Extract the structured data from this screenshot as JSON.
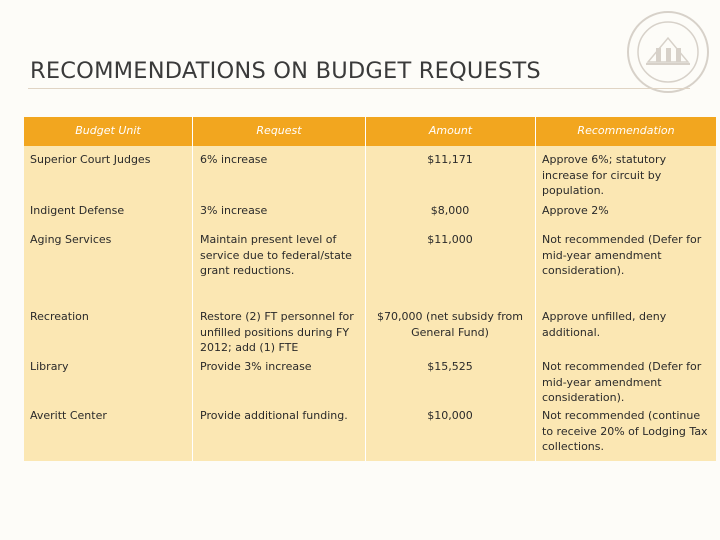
{
  "slide": {
    "title": "RECOMMENDATIONS ON BUDGET REQUESTS"
  },
  "table": {
    "headers": [
      "Budget Unit",
      "Request",
      "Amount",
      "Recommendation"
    ],
    "rows": [
      {
        "unit": "Superior Court Judges",
        "request": "6% increase",
        "amount": "$11,171",
        "recommendation": "Approve 6%; statutory increase for circuit by population."
      },
      {
        "unit": "Indigent Defense",
        "request": "3% increase",
        "amount": "$8,000",
        "recommendation": "Approve 2%"
      },
      {
        "unit": "Aging Services",
        "request": "Maintain present level of service due to federal/state grant reductions.",
        "amount": "$11,000",
        "recommendation": "Not recommended (Defer for mid-year amendment consideration)."
      },
      {
        "unit": "Recreation",
        "request": "Restore (2) FT personnel for unfilled positions during FY 2012; add (1) FTE",
        "amount": "$70,000 (net subsidy from General Fund)",
        "recommendation": "Approve unfilled, deny additional."
      },
      {
        "unit": "Library",
        "request": "Provide 3% increase",
        "amount": "$15,525",
        "recommendation": "Not recommended (Defer for mid-year amendment consideration)."
      },
      {
        "unit": "Averitt Center",
        "request": "Provide additional funding.",
        "amount": "$10,000",
        "recommendation": "Not recommended (continue to receive 20% of Lodging Tax collections."
      }
    ]
  }
}
